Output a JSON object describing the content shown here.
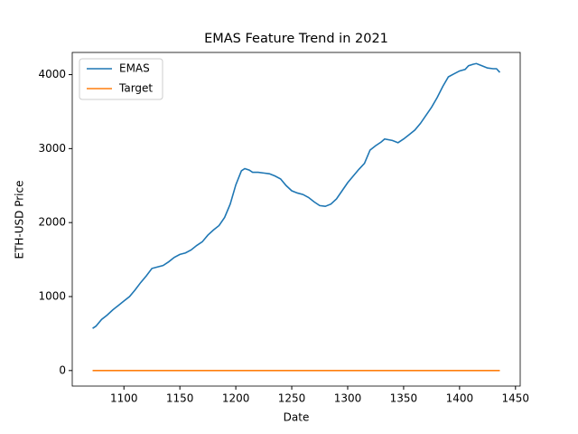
{
  "chart_data": {
    "type": "line",
    "title": "EMAS Feature Trend in 2021",
    "x_label": "Date",
    "y_label": "ETH-USD Price",
    "x": [
      1072,
      1075,
      1080,
      1085,
      1090,
      1095,
      1100,
      1105,
      1110,
      1115,
      1120,
      1125,
      1130,
      1135,
      1140,
      1145,
      1150,
      1155,
      1160,
      1165,
      1170,
      1175,
      1180,
      1185,
      1190,
      1195,
      1200,
      1205,
      1208,
      1212,
      1215,
      1220,
      1225,
      1230,
      1235,
      1240,
      1245,
      1250,
      1255,
      1260,
      1265,
      1270,
      1275,
      1280,
      1285,
      1290,
      1295,
      1300,
      1305,
      1310,
      1315,
      1320,
      1325,
      1330,
      1333,
      1340,
      1345,
      1350,
      1355,
      1360,
      1365,
      1370,
      1375,
      1380,
      1385,
      1390,
      1395,
      1400,
      1405,
      1408,
      1412,
      1415,
      1420,
      1425,
      1430,
      1433,
      1436
    ],
    "series": [
      {
        "name": "EMAS",
        "color": "#1f77b4",
        "values": [
          570,
          600,
          690,
          750,
          820,
          880,
          940,
          1000,
          1090,
          1190,
          1280,
          1380,
          1400,
          1420,
          1470,
          1530,
          1570,
          1590,
          1630,
          1690,
          1740,
          1830,
          1900,
          1960,
          2070,
          2250,
          2510,
          2700,
          2730,
          2710,
          2680,
          2680,
          2670,
          2660,
          2630,
          2590,
          2500,
          2430,
          2400,
          2380,
          2340,
          2280,
          2230,
          2220,
          2250,
          2320,
          2430,
          2540,
          2630,
          2720,
          2800,
          2980,
          3040,
          3090,
          3130,
          3110,
          3080,
          3130,
          3190,
          3250,
          3340,
          3450,
          3560,
          3690,
          3840,
          3970,
          4010,
          4050,
          4070,
          4120,
          4140,
          4150,
          4120,
          4090,
          4080,
          4080,
          4030
        ]
      },
      {
        "name": "Target",
        "color": "#ff7f0e",
        "values": [
          0,
          0,
          0,
          0,
          0,
          0,
          0,
          0,
          0,
          0,
          0,
          0,
          0,
          0,
          0,
          0,
          0,
          0,
          0,
          0,
          0,
          0,
          0,
          0,
          0,
          0,
          0,
          0,
          0,
          0,
          0,
          0,
          0,
          0,
          0,
          0,
          0,
          0,
          0,
          0,
          0,
          0,
          0,
          0,
          0,
          0,
          0,
          0,
          0,
          0,
          0,
          0,
          0,
          0,
          0,
          0,
          0,
          0,
          0,
          0,
          0,
          0,
          0,
          0,
          0,
          0,
          0,
          0,
          0,
          0,
          0,
          0,
          0,
          0,
          0,
          0,
          0
        ]
      }
    ],
    "xlim": [
      1053.8,
      1454.2
    ],
    "xticks": [
      1100,
      1150,
      1200,
      1250,
      1300,
      1350,
      1400,
      1450
    ],
    "ylim": [
      -210,
      4300
    ],
    "yticks": [
      0,
      1000,
      2000,
      3000,
      4000
    ],
    "grid": false,
    "legend": "upper left"
  }
}
